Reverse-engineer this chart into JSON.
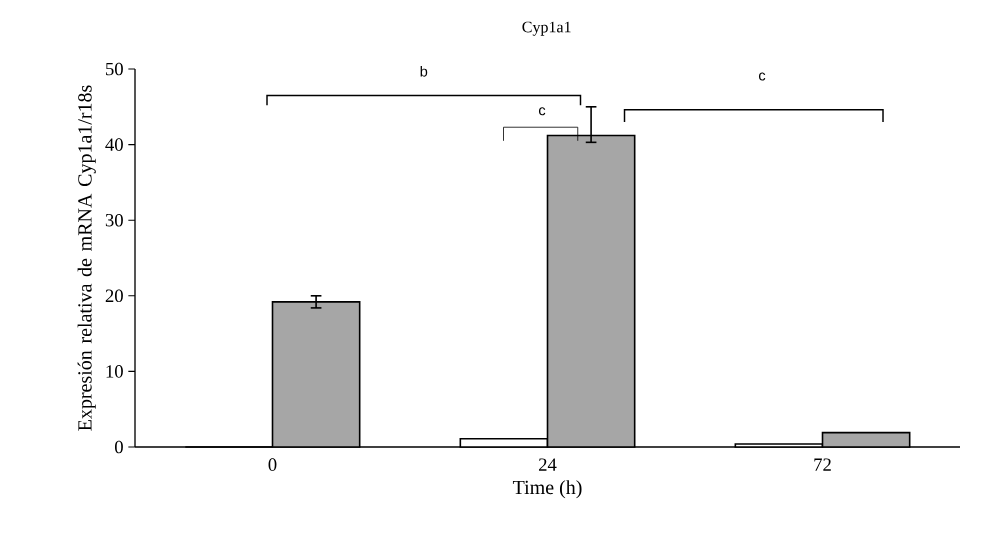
{
  "chart_data": {
    "type": "bar",
    "title": "Cyp1a1",
    "xlabel": "Time (h)",
    "ylabel": "Expresión relativa de  mRNA Cyp1a1/r18s",
    "categories": [
      "0",
      "24",
      "72"
    ],
    "series": [
      {
        "color": "#ffffff",
        "values": [
          0,
          1.1,
          0.4
        ]
      },
      {
        "color": "#a6a6a6",
        "values": [
          19.2,
          41.2,
          1.9
        ],
        "errors": [
          0.8,
          [
            40.3,
            45.0
          ],
          null
        ]
      }
    ],
    "ylim": [
      0,
      50
    ],
    "yticks": [
      0,
      10,
      20,
      30,
      40,
      50
    ],
    "grid": false,
    "annotations": [
      "b",
      "c",
      "c"
    ]
  }
}
